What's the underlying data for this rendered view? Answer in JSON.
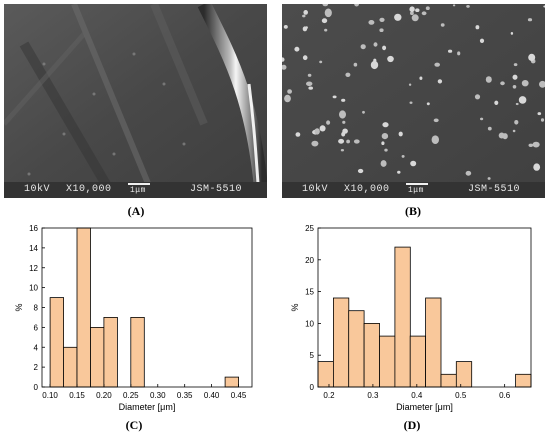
{
  "sem_images": [
    {
      "label": "(A)",
      "voltage": "10kV",
      "magnification": "X10,000",
      "scale_label": "1μm",
      "instrument": "JSM-5510"
    },
    {
      "label": "(B)",
      "voltage": "10kV",
      "magnification": "X10,000",
      "scale_label": "1μm",
      "instrument": "JSM-5510"
    }
  ],
  "chart_data": [
    {
      "type": "bar",
      "panel_label": "(C)",
      "xlabel": "Diameter [μm]",
      "ylabel": "%",
      "xlim": [
        0.085,
        0.475
      ],
      "ylim": [
        0,
        16
      ],
      "x_ticks": [
        "0.10",
        "0.15",
        "0.20",
        "0.25",
        "0.30",
        "0.35",
        "0.40",
        "0.45"
      ],
      "x_tick_values": [
        0.1,
        0.15,
        0.2,
        0.25,
        0.3,
        0.35,
        0.4,
        0.45
      ],
      "y_ticks": [
        "0",
        "2",
        "4",
        "6",
        "8",
        "10",
        "12",
        "14",
        "16"
      ],
      "y_tick_values": [
        0,
        2,
        4,
        6,
        8,
        10,
        12,
        14,
        16
      ],
      "bin_width": 0.025,
      "bins": [
        {
          "x": 0.1125,
          "value": 9
        },
        {
          "x": 0.1375,
          "value": 4
        },
        {
          "x": 0.1625,
          "value": 16
        },
        {
          "x": 0.1875,
          "value": 6
        },
        {
          "x": 0.2125,
          "value": 7
        },
        {
          "x": 0.2625,
          "value": 7
        },
        {
          "x": 0.4375,
          "value": 1
        }
      ],
      "bar_color": "#f9c89b",
      "edge_color": "#000000"
    },
    {
      "type": "bar",
      "panel_label": "(D)",
      "xlabel": "Diameter [μm]",
      "ylabel": "%",
      "xlim": [
        0.175,
        0.66
      ],
      "ylim": [
        0,
        25
      ],
      "x_ticks": [
        "0.2",
        "0.3",
        "0.4",
        "0.5",
        "0.6"
      ],
      "x_tick_values": [
        0.2,
        0.3,
        0.4,
        0.5,
        0.6
      ],
      "y_ticks": [
        "0",
        "5",
        "10",
        "15",
        "20",
        "25"
      ],
      "y_tick_values": [
        0,
        5,
        10,
        15,
        20,
        25
      ],
      "bin_width": 0.035,
      "bins": [
        {
          "x": 0.1925,
          "value": 4
        },
        {
          "x": 0.2275,
          "value": 14
        },
        {
          "x": 0.2625,
          "value": 12
        },
        {
          "x": 0.2975,
          "value": 10
        },
        {
          "x": 0.3325,
          "value": 8
        },
        {
          "x": 0.3675,
          "value": 22
        },
        {
          "x": 0.4025,
          "value": 8
        },
        {
          "x": 0.4375,
          "value": 14
        },
        {
          "x": 0.4725,
          "value": 2
        },
        {
          "x": 0.5075,
          "value": 4
        },
        {
          "x": 0.6425,
          "value": 2
        }
      ],
      "bar_color": "#f9c89b",
      "edge_color": "#000000"
    }
  ]
}
